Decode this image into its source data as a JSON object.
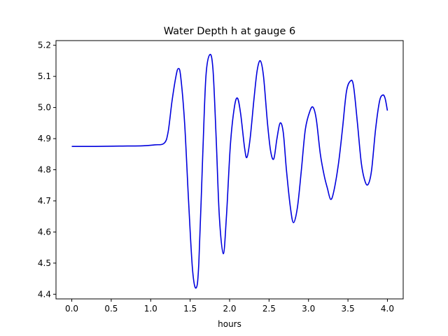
{
  "chart_data": {
    "type": "line",
    "title": "Water Depth h at gauge 6",
    "xlabel": "hours",
    "ylabel": "",
    "xlim": [
      -0.2,
      4.2
    ],
    "ylim": [
      4.385,
      5.215
    ],
    "xticks": [
      0.0,
      0.5,
      1.0,
      1.5,
      2.0,
      2.5,
      3.0,
      3.5,
      4.0
    ],
    "xtick_labels": [
      "0.0",
      "0.5",
      "1.0",
      "1.5",
      "2.0",
      "2.5",
      "3.0",
      "3.5",
      "4.0"
    ],
    "yticks": [
      4.4,
      4.5,
      4.6,
      4.7,
      4.8,
      4.9,
      5.0,
      5.1,
      5.2
    ],
    "ytick_labels": [
      "4.4",
      "4.5",
      "4.6",
      "4.7",
      "4.8",
      "4.9",
      "5.0",
      "5.1",
      "5.2"
    ],
    "grid": false,
    "legend": "none",
    "series": [
      {
        "color": "#0000dd",
        "points": [
          [
            0.0,
            4.875
          ],
          [
            0.3,
            4.875
          ],
          [
            0.6,
            4.876
          ],
          [
            0.9,
            4.877
          ],
          [
            1.05,
            4.88
          ],
          [
            1.17,
            4.885
          ],
          [
            1.22,
            4.92
          ],
          [
            1.27,
            5.02
          ],
          [
            1.32,
            5.1
          ],
          [
            1.35,
            5.125
          ],
          [
            1.38,
            5.1
          ],
          [
            1.43,
            4.95
          ],
          [
            1.48,
            4.7
          ],
          [
            1.53,
            4.48
          ],
          [
            1.575,
            4.42
          ],
          [
            1.61,
            4.5
          ],
          [
            1.66,
            4.85
          ],
          [
            1.7,
            5.1
          ],
          [
            1.75,
            5.17
          ],
          [
            1.79,
            5.12
          ],
          [
            1.83,
            4.9
          ],
          [
            1.87,
            4.65
          ],
          [
            1.92,
            4.53
          ],
          [
            1.96,
            4.65
          ],
          [
            2.01,
            4.88
          ],
          [
            2.06,
            5.0
          ],
          [
            2.1,
            5.03
          ],
          [
            2.14,
            4.98
          ],
          [
            2.19,
            4.87
          ],
          [
            2.22,
            4.84
          ],
          [
            2.26,
            4.9
          ],
          [
            2.31,
            5.03
          ],
          [
            2.35,
            5.12
          ],
          [
            2.39,
            5.15
          ],
          [
            2.43,
            5.1
          ],
          [
            2.48,
            4.95
          ],
          [
            2.52,
            4.86
          ],
          [
            2.56,
            4.835
          ],
          [
            2.6,
            4.9
          ],
          [
            2.64,
            4.95
          ],
          [
            2.68,
            4.92
          ],
          [
            2.72,
            4.8
          ],
          [
            2.77,
            4.68
          ],
          [
            2.81,
            4.63
          ],
          [
            2.86,
            4.68
          ],
          [
            2.91,
            4.8
          ],
          [
            2.96,
            4.93
          ],
          [
            3.02,
            4.99
          ],
          [
            3.06,
            5.0
          ],
          [
            3.1,
            4.96
          ],
          [
            3.15,
            4.85
          ],
          [
            3.2,
            4.78
          ],
          [
            3.24,
            4.74
          ],
          [
            3.28,
            4.705
          ],
          [
            3.32,
            4.73
          ],
          [
            3.38,
            4.82
          ],
          [
            3.43,
            4.93
          ],
          [
            3.48,
            5.05
          ],
          [
            3.53,
            5.085
          ],
          [
            3.57,
            5.07
          ],
          [
            3.62,
            4.95
          ],
          [
            3.67,
            4.82
          ],
          [
            3.72,
            4.76
          ],
          [
            3.76,
            4.755
          ],
          [
            3.8,
            4.8
          ],
          [
            3.85,
            4.93
          ],
          [
            3.9,
            5.02
          ],
          [
            3.94,
            5.04
          ],
          [
            3.97,
            5.03
          ],
          [
            4.0,
            4.99
          ]
        ]
      }
    ]
  }
}
